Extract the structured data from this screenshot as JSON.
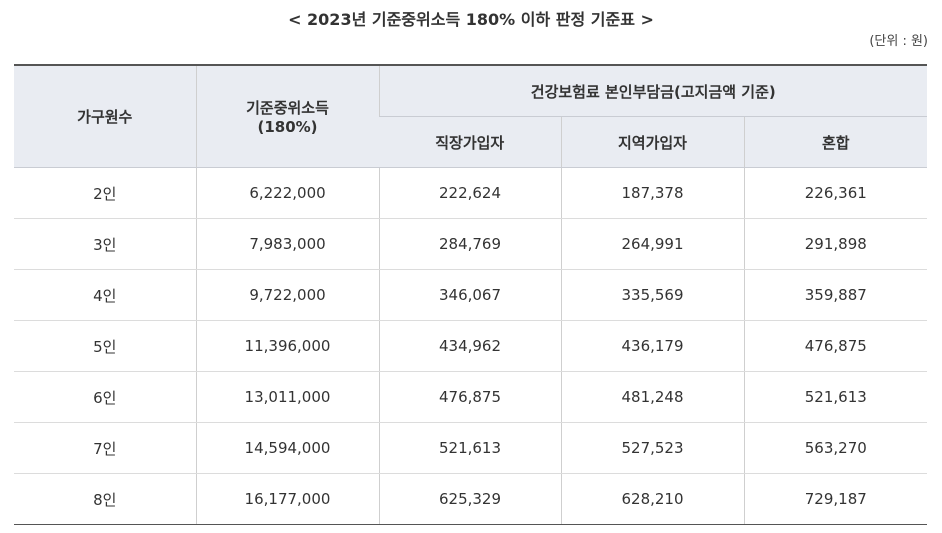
{
  "title": "< 2023년 기준중위소득 180% 이하 판정 기준표 >",
  "unit": "(단위 : 원)",
  "header": {
    "household": "가구원수",
    "income_line1": "기준중위소득",
    "income_line2": "(180%)",
    "premium_group": "건강보험료 본인부담금(고지금액 기준)",
    "employee": "직장가입자",
    "regional": "지역가입자",
    "mixed": "혼합"
  },
  "rows": [
    {
      "household": "2인",
      "income": "6,222,000",
      "employee": "222,624",
      "regional": "187,378",
      "mixed": "226,361"
    },
    {
      "household": "3인",
      "income": "7,983,000",
      "employee": "284,769",
      "regional": "264,991",
      "mixed": "291,898"
    },
    {
      "household": "4인",
      "income": "9,722,000",
      "employee": "346,067",
      "regional": "335,569",
      "mixed": "359,887"
    },
    {
      "household": "5인",
      "income": "11,396,000",
      "employee": "434,962",
      "regional": "436,179",
      "mixed": "476,875"
    },
    {
      "household": "6인",
      "income": "13,011,000",
      "employee": "476,875",
      "regional": "481,248",
      "mixed": "521,613"
    },
    {
      "household": "7인",
      "income": "14,594,000",
      "employee": "521,613",
      "regional": "527,523",
      "mixed": "563,270"
    },
    {
      "household": "8인",
      "income": "16,177,000",
      "employee": "625,329",
      "regional": "628,210",
      "mixed": "729,187"
    }
  ]
}
